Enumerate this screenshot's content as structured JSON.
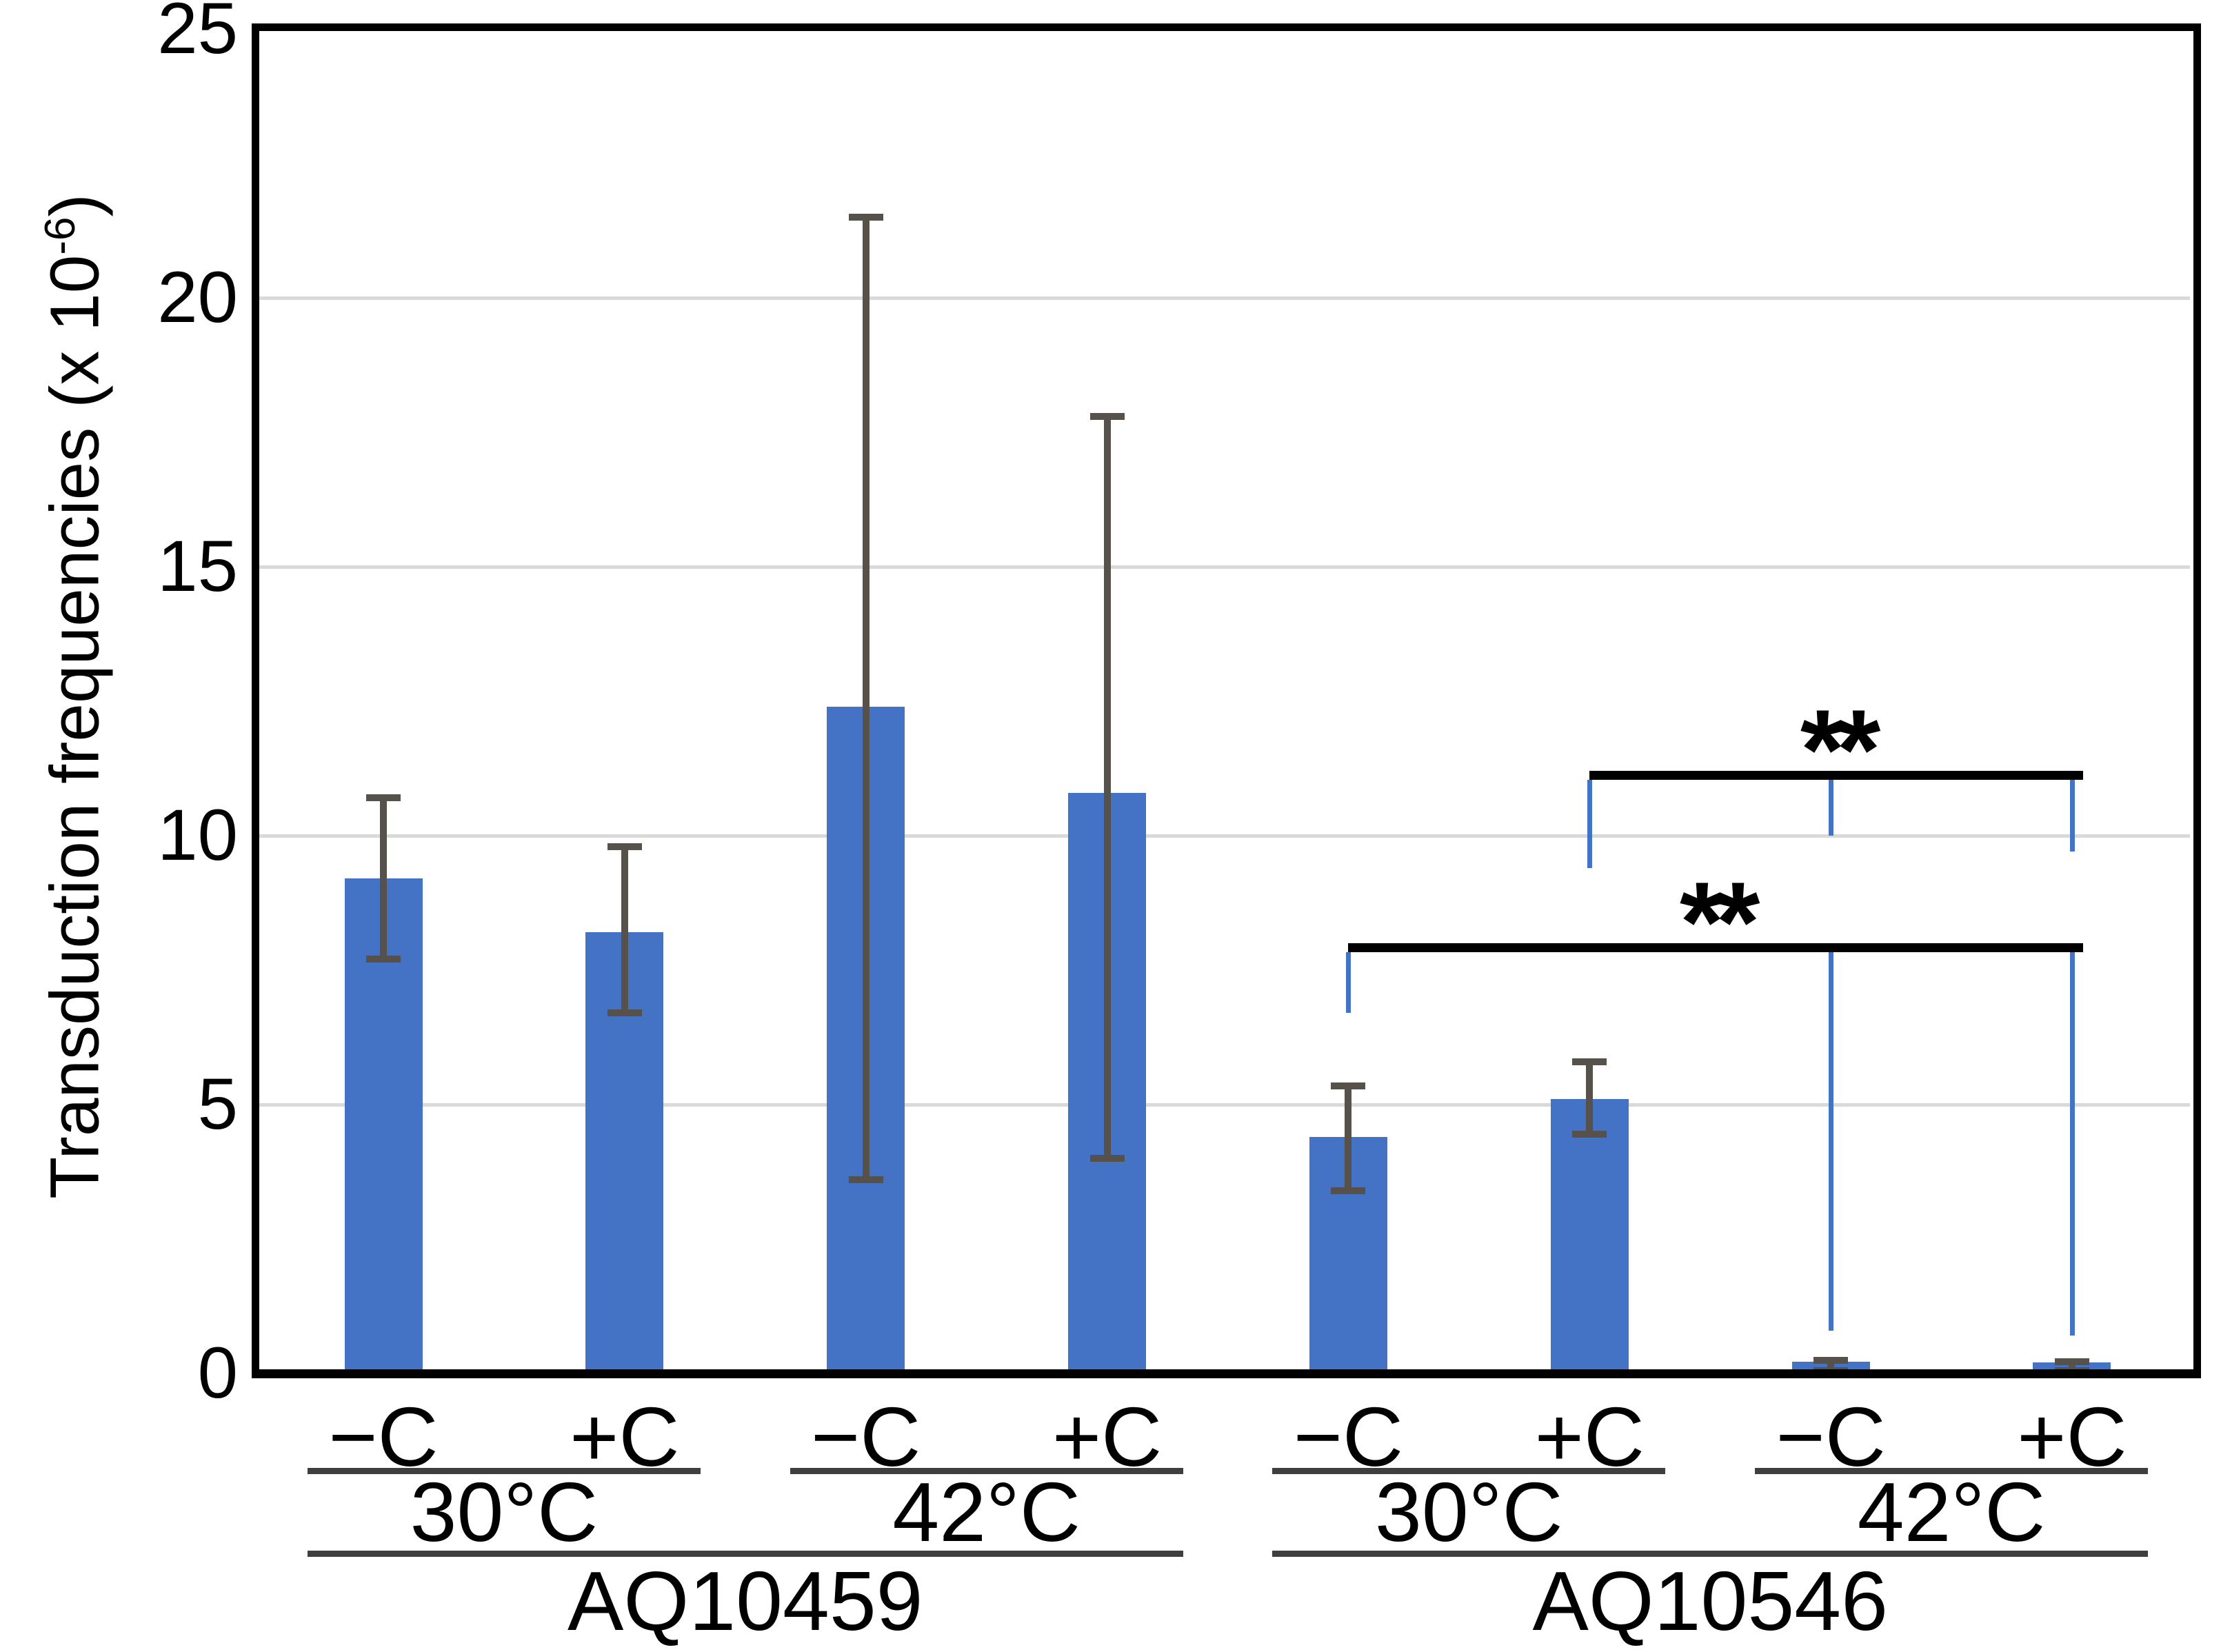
{
  "chart_data": {
    "type": "bar",
    "title": "",
    "ylabel": "Transduction frequencies (x 10-6)",
    "ylabel_parts": {
      "pre": "Transduction frequencies (x 10",
      "sup": "-6",
      "post": ")"
    },
    "xlabel": "",
    "ylim": [
      0,
      25
    ],
    "yticks": [
      0,
      5,
      10,
      15,
      20,
      25
    ],
    "grid": "horizontal",
    "legend": "none",
    "colors": {
      "bar": "#4472C4",
      "error": "#57514B",
      "gridline": "#d9d9d9",
      "axis": "#000000",
      "underline": "#3f3f3f",
      "bracket": "#000000",
      "riser": "#4472C4",
      "stars": "#000000"
    },
    "bars": [
      {
        "strain": "AQ10459",
        "temperature": "30°C",
        "condition": "−C",
        "value": 9.2,
        "err_low": 7.7,
        "err_high": 10.7
      },
      {
        "strain": "AQ10459",
        "temperature": "30°C",
        "condition": "+C",
        "value": 8.2,
        "err_low": 6.7,
        "err_high": 9.8
      },
      {
        "strain": "AQ10459",
        "temperature": "42°C",
        "condition": "−C",
        "value": 12.4,
        "err_low": 3.6,
        "err_high": 21.5
      },
      {
        "strain": "AQ10459",
        "temperature": "42°C",
        "condition": "+C",
        "value": 10.8,
        "err_low": 4.0,
        "err_high": 17.8
      },
      {
        "strain": "AQ10546",
        "temperature": "30°C",
        "condition": "−C",
        "value": 4.4,
        "err_low": 3.4,
        "err_high": 5.35
      },
      {
        "strain": "AQ10546",
        "temperature": "30°C",
        "condition": "+C",
        "value": 5.1,
        "err_low": 4.45,
        "err_high": 5.8
      },
      {
        "strain": "AQ10546",
        "temperature": "42°C",
        "condition": "−C",
        "value": 0.22,
        "err_low": 0.05,
        "err_high": 0.25
      },
      {
        "strain": "AQ10546",
        "temperature": "42°C",
        "condition": "+C",
        "value": 0.2,
        "err_low": 0.05,
        "err_high": 0.22
      }
    ],
    "x_axis": {
      "strains": [
        {
          "label": "AQ10459",
          "temperatures": [
            {
              "label": "30°C",
              "conditions": [
                "−C",
                "+C"
              ]
            },
            {
              "label": "42°C",
              "conditions": [
                "−C",
                "+C"
              ]
            }
          ]
        },
        {
          "label": "AQ10546",
          "temperatures": [
            {
              "label": "30°C",
              "conditions": [
                "−C",
                "+C"
              ]
            },
            {
              "label": "42°C",
              "conditions": [
                "−C",
                "+C"
              ]
            }
          ]
        }
      ]
    },
    "significance": [
      {
        "label": "**",
        "level": 11.2,
        "from_bar": 5,
        "to_bar": 7,
        "risers": [
          {
            "bar": 5,
            "to_value": 9.4
          },
          {
            "bar": 6,
            "to_value": 10.0
          },
          {
            "bar": 7,
            "to_value": 9.7
          }
        ]
      },
      {
        "label": "**",
        "level": 8.0,
        "from_bar": 4,
        "to_bar": 7,
        "risers": [
          {
            "bar": 4,
            "to_value": 6.7
          },
          {
            "bar": 6,
            "to_value": 0.8
          },
          {
            "bar": 7,
            "to_value": 0.7
          }
        ]
      }
    ]
  }
}
